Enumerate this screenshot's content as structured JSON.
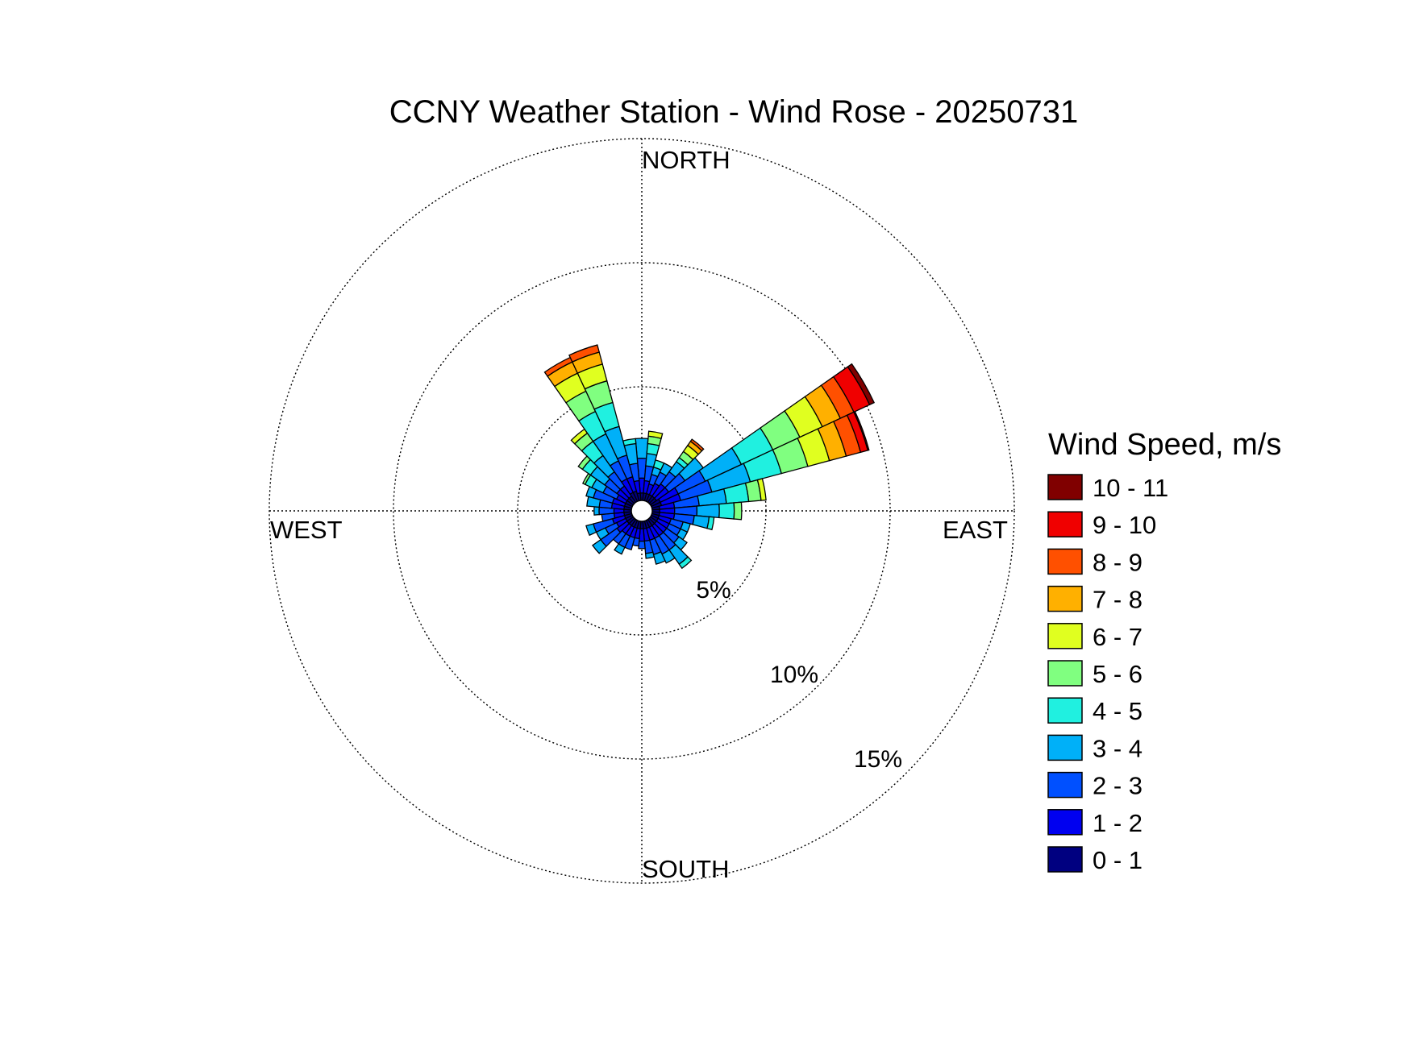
{
  "chart_data": {
    "type": "wind-rose",
    "title": "CCNY Weather Station - Wind Rose - 20250731",
    "directions": [
      "NORTH",
      "EAST",
      "SOUTH",
      "WEST"
    ],
    "rings": [
      {
        "value": 5,
        "label": "5%"
      },
      {
        "value": 10,
        "label": "10%"
      },
      {
        "value": 15,
        "label": "15%"
      }
    ],
    "rmax": 15,
    "bin_width_deg": 10,
    "legend": {
      "title": "Wind Speed, m/s",
      "bins": [
        {
          "label": "0 - 1",
          "color": "#000080"
        },
        {
          "label": "1 - 2",
          "color": "#0000f0"
        },
        {
          "label": "2 - 3",
          "color": "#0050ff"
        },
        {
          "label": "3 - 4",
          "color": "#00b0f8"
        },
        {
          "label": "4 - 5",
          "color": "#20f0e0"
        },
        {
          "label": "5 - 6",
          "color": "#80ff80"
        },
        {
          "label": "6 - 7",
          "color": "#e0ff20"
        },
        {
          "label": "7 - 8",
          "color": "#ffb000"
        },
        {
          "label": "8 - 9",
          "color": "#ff5000"
        },
        {
          "label": "9 - 10",
          "color": "#f00000"
        },
        {
          "label": "10 - 11",
          "color": "#800000"
        }
      ]
    },
    "sectors": [
      {
        "dir": 0,
        "values": [
          0.3,
          0.6,
          0.8,
          0.8
        ]
      },
      {
        "dir": 10,
        "values": [
          0.3,
          0.5,
          0.6,
          0.5,
          0.4,
          0.3,
          0.2
        ]
      },
      {
        "dir": 20,
        "values": [
          0.3,
          0.4,
          0.4,
          0.3,
          0.3
        ]
      },
      {
        "dir": 30,
        "values": [
          0.3,
          0.5,
          0.5,
          0.4
        ]
      },
      {
        "dir": 40,
        "values": [
          0.3,
          0.6,
          0.6,
          0.5,
          0.2,
          0.3,
          0.3,
          0.2,
          0.1
        ]
      },
      {
        "dir": 50,
        "values": [
          0.3,
          0.6,
          0.8,
          0.9
        ]
      },
      {
        "dir": 60,
        "values": [
          0.4,
          0.8,
          1.2,
          1.6,
          1.4,
          1.2,
          1.0,
          0.8,
          0.6,
          0.7,
          0.2
        ]
      },
      {
        "dir": 70,
        "values": [
          0.4,
          0.8,
          1.3,
          1.6,
          1.3,
          1.1,
          0.9,
          0.7,
          0.6,
          0.3,
          0.05
        ]
      },
      {
        "dir": 80,
        "values": [
          0.3,
          0.6,
          1.0,
          1.1,
          0.9,
          0.5,
          0.2
        ]
      },
      {
        "dir": 90,
        "values": [
          0.3,
          0.6,
          0.9,
          0.9,
          0.6,
          0.3
        ]
      },
      {
        "dir": 100,
        "values": [
          0.3,
          0.6,
          0.8,
          0.6,
          0.2
        ]
      },
      {
        "dir": 110,
        "values": [
          0.3,
          0.5,
          0.5,
          0.3
        ]
      },
      {
        "dir": 120,
        "values": [
          0.3,
          0.5,
          0.5,
          0.3
        ]
      },
      {
        "dir": 130,
        "values": [
          0.3,
          0.5,
          0.6,
          0.4
        ]
      },
      {
        "dir": 140,
        "values": [
          0.3,
          0.5,
          0.7,
          0.7,
          0.2
        ]
      },
      {
        "dir": 150,
        "values": [
          0.3,
          0.5,
          0.7,
          0.4
        ]
      },
      {
        "dir": 160,
        "values": [
          0.3,
          0.5,
          0.6,
          0.4
        ]
      },
      {
        "dir": 170,
        "values": [
          0.3,
          0.5,
          0.5,
          0.2
        ]
      },
      {
        "dir": 180,
        "values": [
          0.3,
          0.5,
          0.3
        ]
      },
      {
        "dir": 190,
        "values": [
          0.3,
          0.4,
          0.3
        ]
      },
      {
        "dir": 200,
        "values": [
          0.3,
          0.4,
          0.5
        ]
      },
      {
        "dir": 210,
        "values": [
          0.3,
          0.4,
          0.5,
          0.3
        ]
      },
      {
        "dir": 220,
        "values": [
          0.3,
          0.4,
          0.5
        ]
      },
      {
        "dir": 230,
        "values": [
          0.3,
          0.5,
          0.8,
          0.4
        ]
      },
      {
        "dir": 240,
        "values": [
          0.3,
          0.4,
          0.5,
          0.4
        ]
      },
      {
        "dir": 250,
        "values": [
          0.3,
          0.5,
          0.8,
          0.3
        ]
      },
      {
        "dir": 260,
        "values": [
          0.3,
          0.4,
          0.5
        ]
      },
      {
        "dir": 270,
        "values": [
          0.3,
          0.4,
          0.6,
          0.2
        ]
      },
      {
        "dir": 280,
        "values": [
          0.3,
          0.5,
          0.5,
          0.5
        ]
      },
      {
        "dir": 290,
        "values": [
          0.3,
          0.5,
          0.8,
          0.3
        ]
      },
      {
        "dir": 300,
        "values": [
          0.3,
          0.4,
          0.6,
          0.5,
          0.3,
          0.1
        ]
      },
      {
        "dir": 310,
        "values": [
          0.3,
          0.5,
          0.6,
          0.7,
          0.4,
          0.2
        ]
      },
      {
        "dir": 320,
        "values": [
          0.3,
          0.5,
          0.7,
          0.8,
          0.7,
          0.4,
          0.2
        ]
      },
      {
        "dir": 330,
        "values": [
          0.4,
          0.6,
          0.8,
          1.2,
          1.0,
          0.9,
          0.8,
          0.5,
          0.2
        ]
      },
      {
        "dir": 340,
        "values": [
          0.4,
          0.6,
          0.9,
          1.2,
          1.0,
          0.9,
          0.7,
          0.5,
          0.3
        ]
      },
      {
        "dir": 350,
        "values": [
          0.3,
          0.5,
          0.7,
          0.8,
          0.2
        ]
      }
    ]
  }
}
